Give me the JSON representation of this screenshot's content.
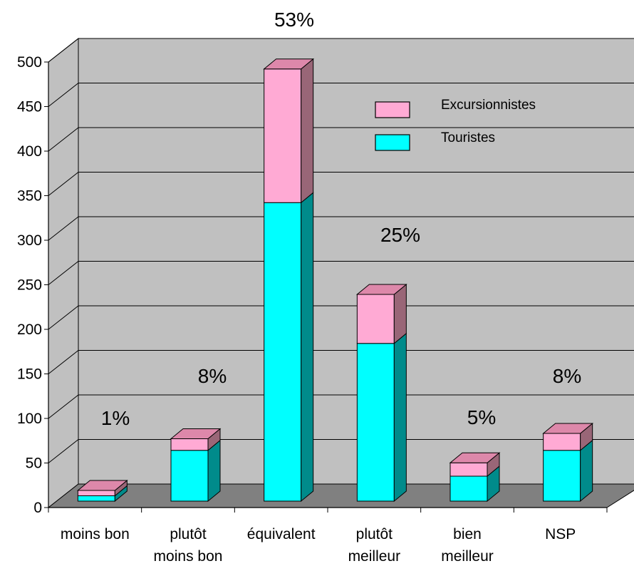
{
  "colors": {
    "touristes_front": "#00ffff",
    "touristes_side": "#008b8b",
    "touristes_top": "#00cccc",
    "excursionnistes_front": "#ffaad4",
    "excursionnistes_side": "#996677",
    "excursionnistes_top": "#dd88aa",
    "wall": "#c0c0c0",
    "floor": "#808080"
  },
  "chart_data": {
    "type": "bar",
    "stacked": true,
    "three_d": true,
    "categories": [
      "moins bon",
      "plutôt moins bon",
      "équivalent",
      "plutôt meilleur",
      "bien meilleur",
      "NSP"
    ],
    "category_lines": [
      [
        "moins bon"
      ],
      [
        "plutôt",
        "moins bon"
      ],
      [
        "équivalent"
      ],
      [
        "plutôt",
        "meilleur"
      ],
      [
        "bien",
        "meilleur"
      ],
      [
        "NSP"
      ]
    ],
    "series": [
      {
        "name": "Touristes",
        "values": [
          6,
          57,
          335,
          177,
          28,
          57
        ]
      },
      {
        "name": "Excursionnistes",
        "values": [
          6,
          13,
          150,
          55,
          15,
          19
        ]
      }
    ],
    "percent_labels": [
      "1%",
      "8%",
      "53%",
      "25%",
      "5%",
      "8%"
    ],
    "yticks": [
      0,
      50,
      100,
      150,
      200,
      250,
      300,
      350,
      400,
      450,
      500
    ],
    "ylim": [
      0,
      500
    ],
    "grid": true,
    "legend_position": "top-right"
  }
}
